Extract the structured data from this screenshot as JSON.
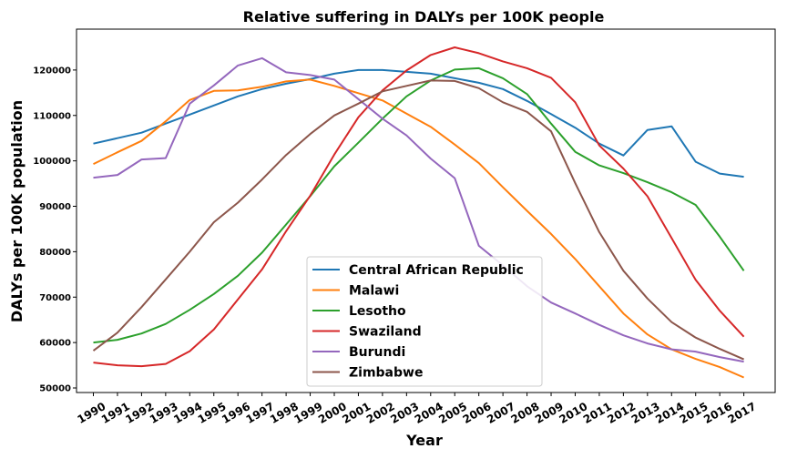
{
  "chart_data": {
    "type": "line",
    "title": "Relative suffering in DALYs per 100K people",
    "xlabel": "Year",
    "ylabel": "DALYs per 100K population",
    "x": [
      1990,
      1991,
      1992,
      1993,
      1994,
      1995,
      1996,
      1997,
      1998,
      1999,
      2000,
      2001,
      2002,
      2003,
      2004,
      2005,
      2006,
      2007,
      2008,
      2009,
      2010,
      2011,
      2012,
      2013,
      2014,
      2015,
      2016,
      2017
    ],
    "xlim": [
      1989.3,
      2018.3
    ],
    "ylim": [
      49000,
      129000
    ],
    "yticks": [
      50000,
      60000,
      70000,
      80000,
      90000,
      100000,
      110000,
      120000
    ],
    "ytick_labels": [
      "50000",
      "60000",
      "70000",
      "80000",
      "90000",
      "100000",
      "110000",
      "120000"
    ],
    "grid": false,
    "legend_position": "lower-center",
    "series": [
      {
        "name": "Central African Republic",
        "color": "#1f77b4",
        "values": [
          103800,
          105000,
          106200,
          108200,
          110200,
          112200,
          114200,
          115800,
          117000,
          118000,
          119200,
          120000,
          120000,
          119600,
          119200,
          118200,
          117200,
          115800,
          113200,
          110300,
          107300,
          103800,
          101200,
          106800,
          107600,
          99800,
          97200,
          96500
        ]
      },
      {
        "name": "Malawi",
        "color": "#ff7f0e",
        "values": [
          99300,
          101900,
          104400,
          108700,
          113400,
          115400,
          115500,
          116300,
          117500,
          117900,
          116500,
          114900,
          113300,
          110400,
          107500,
          103600,
          99500,
          94200,
          89000,
          83900,
          78400,
          72400,
          66400,
          61800,
          58500,
          56400,
          54600,
          52300
        ]
      },
      {
        "name": "Lesotho",
        "color": "#2ca02c",
        "values": [
          60000,
          60600,
          62000,
          64100,
          67200,
          70700,
          74700,
          79800,
          86000,
          92200,
          98800,
          104000,
          109300,
          114200,
          117700,
          120100,
          120400,
          118200,
          114700,
          108200,
          102000,
          99000,
          97300,
          95300,
          93100,
          90300,
          83300,
          75800
        ]
      },
      {
        "name": "Swaziland",
        "color": "#d62728",
        "values": [
          55600,
          55000,
          54800,
          55300,
          58100,
          62900,
          69500,
          76100,
          84500,
          92300,
          101400,
          109600,
          115500,
          119900,
          123300,
          125000,
          123700,
          121900,
          120400,
          118300,
          112900,
          103400,
          98300,
          92200,
          83000,
          73800,
          67000,
          61300
        ]
      },
      {
        "name": "Burundi",
        "color": "#9467bd",
        "values": [
          96300,
          96900,
          100300,
          100600,
          112600,
          116600,
          121000,
          122600,
          119500,
          118900,
          117900,
          113600,
          109300,
          105600,
          100500,
          96200,
          81300,
          77000,
          72400,
          68800,
          66400,
          63900,
          61600,
          59800,
          58500,
          58000,
          56800,
          55800
        ]
      },
      {
        "name": "Zimbabwe",
        "color": "#8c564b",
        "values": [
          58200,
          62200,
          67800,
          73900,
          80000,
          86500,
          90800,
          95900,
          101300,
          105900,
          110000,
          112600,
          115300,
          116500,
          117700,
          117600,
          116000,
          112900,
          110800,
          106500,
          95100,
          84300,
          75800,
          69700,
          64500,
          61100,
          58600,
          56300
        ]
      }
    ]
  }
}
